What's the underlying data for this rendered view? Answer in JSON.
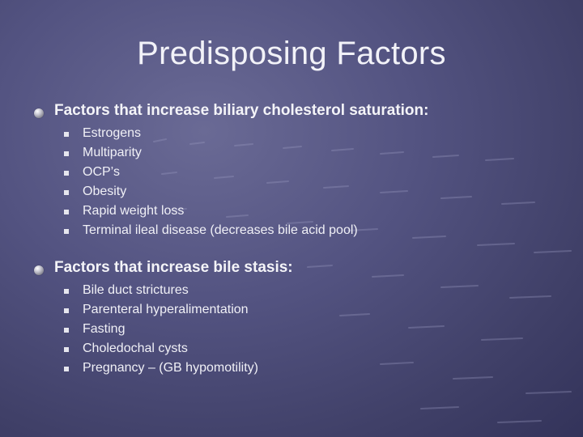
{
  "slide": {
    "title": "Predisposing Factors",
    "sections": [
      {
        "heading": "Factors that increase biliary cholesterol saturation:",
        "items": [
          "Estrogens",
          "Multiparity",
          "OCP’s",
          "Obesity",
          "Rapid weight loss",
          "Terminal ileal disease (decreases bile acid pool)"
        ]
      },
      {
        "heading": "Factors that increase bile stasis:",
        "items": [
          "Bile duct strictures",
          "Parenteral hyperalimentation",
          "Fasting",
          "Choledochal cysts",
          "Pregnancy – (GB hypomotility)"
        ]
      }
    ]
  },
  "colors": {
    "background": "#535381",
    "text": "#f2f2f8"
  }
}
